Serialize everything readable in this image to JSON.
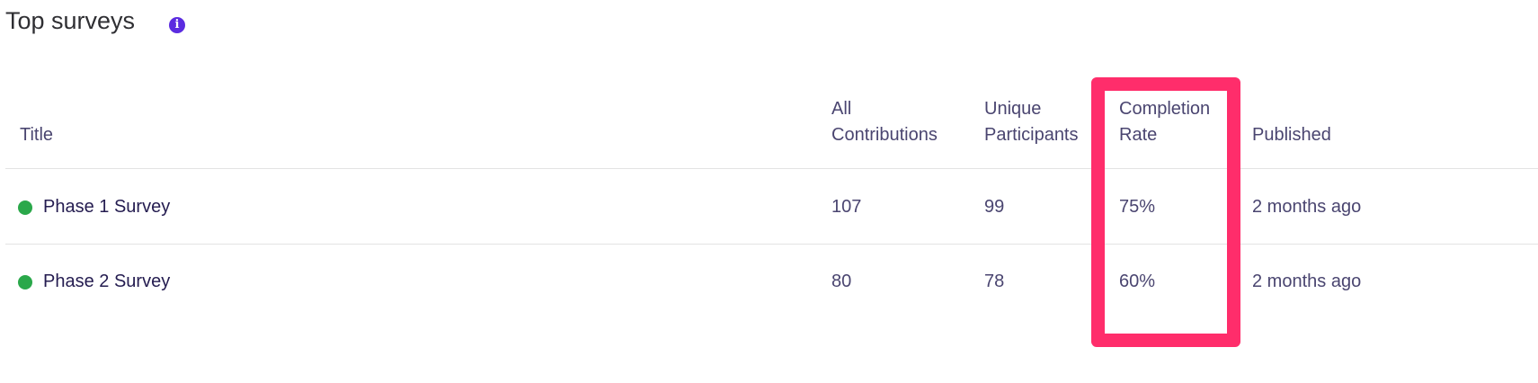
{
  "header": {
    "title": "Top surveys",
    "info_icon": "info-icon"
  },
  "table": {
    "columns": [
      {
        "line1": "",
        "line2": "Title"
      },
      {
        "line1": "All",
        "line2": "Contributions"
      },
      {
        "line1": "Unique",
        "line2": "Participants"
      },
      {
        "line1": "Completion",
        "line2": "Rate"
      },
      {
        "line1": "",
        "line2": "Published"
      }
    ],
    "rows": [
      {
        "title": "Phase 1 Survey",
        "status_color": "#2aa84a",
        "contributions": "107",
        "participants": "99",
        "completion_rate": "75%",
        "published": "2 months ago"
      },
      {
        "title": "Phase 2 Survey",
        "status_color": "#2aa84a",
        "contributions": "80",
        "participants": "78",
        "completion_rate": "60%",
        "published": "2 months ago"
      }
    ]
  },
  "highlight": {
    "color": "#ff2d6b",
    "target_column": "Completion Rate"
  }
}
